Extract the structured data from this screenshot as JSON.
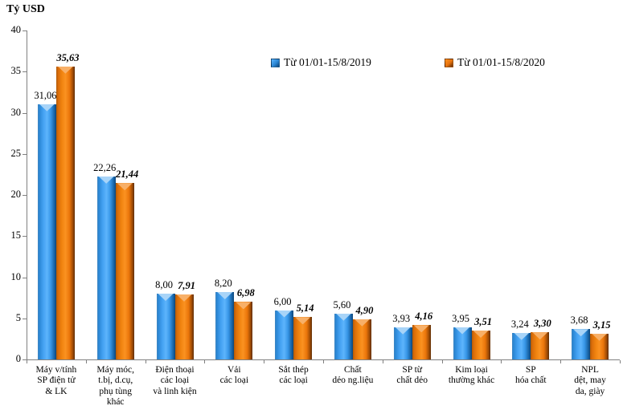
{
  "title": "Tỷ USD",
  "legend": {
    "items": [
      {
        "label": "Từ 01/01-15/8/2019",
        "color": "#2E8FDD"
      },
      {
        "label": "Từ 01/01-15/8/2020",
        "color": "#E8720C"
      }
    ]
  },
  "chart_data": {
    "type": "bar",
    "title": "Tỷ USD",
    "xlabel": "",
    "ylabel": "Tỷ USD",
    "ylim": [
      0,
      40
    ],
    "ytick_step": 5,
    "yticks": [
      "0",
      "5",
      "10",
      "15",
      "20",
      "25",
      "30",
      "35",
      "40"
    ],
    "grid": false,
    "legend_position": "top-right-inside",
    "categories": [
      "Máy v/tính\nSP điện tử\n& LK",
      "Máy móc,\nt.bị, d.cụ,\nphụ tùng\nkhác",
      "Điện thoại\ncác loại\nvà linh kiện",
      "Vải\ncác loại",
      "Sắt thép\ncác loại",
      "Chất\ndẻo ng.liệu",
      "SP từ\nchất dẻo",
      "Kim loại\nthường khác",
      "SP\nhóa chất",
      "NPL\ndệt, may\nda, giày"
    ],
    "series": [
      {
        "name": "Từ 01/01-15/8/2019",
        "color": "#2E8FDD",
        "values": [
          31.06,
          22.26,
          8.0,
          8.2,
          6.0,
          5.6,
          3.93,
          3.95,
          3.24,
          3.68
        ],
        "labels": [
          "31,06",
          "22,26",
          "8,00",
          "8,20",
          "6,00",
          "5,60",
          "3,93",
          "3,95",
          "3,24",
          "3,68"
        ]
      },
      {
        "name": "Từ 01/01-15/8/2020",
        "color": "#E8720C",
        "values": [
          35.63,
          21.44,
          7.91,
          6.98,
          5.14,
          4.9,
          4.16,
          3.51,
          3.3,
          3.15
        ],
        "labels": [
          "35,63",
          "21,44",
          "7,91",
          "6,98",
          "5,14",
          "4,90",
          "4,16",
          "3,51",
          "3,30",
          "3,15"
        ]
      }
    ]
  }
}
